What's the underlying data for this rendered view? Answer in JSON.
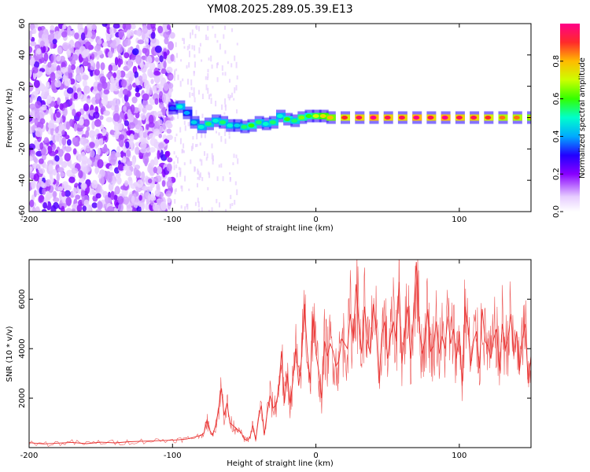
{
  "title": "YM08.2025.289.05.39.E13",
  "colors": {
    "line": "#e8302e",
    "axis": "#000000",
    "ridge": "#ff2a2a"
  },
  "chart_data": [
    {
      "type": "heatmap",
      "name": "spectrogram",
      "xlabel": "Height of straight line (km)",
      "ylabel": "Frequency (Hz)",
      "xlim": [
        -200,
        150
      ],
      "ylim": [
        -60,
        60
      ],
      "x_ticks": [
        -200,
        -100,
        0,
        100
      ],
      "x_tick_labels": [
        "-200",
        "-100",
        "0",
        "100"
      ],
      "y_ticks": [
        -60,
        -40,
        -20,
        0,
        20,
        40,
        60
      ],
      "y_tick_labels": [
        "-60",
        "-40",
        "-20",
        "0",
        "20",
        "40",
        "60"
      ],
      "colorbar": {
        "label": "Normalized spectral amplitude",
        "range": [
          0,
          1
        ],
        "ticks": [
          0,
          0.2,
          0.4,
          0.6,
          0.8
        ],
        "tick_labels": [
          "0.0",
          "0.2",
          "0.4",
          "0.6",
          "0.8"
        ]
      },
      "ridge_points": [
        {
          "x": -100,
          "y": 6,
          "v": 0.35
        },
        {
          "x": -95,
          "y": 7,
          "v": 0.5
        },
        {
          "x": -90,
          "y": 3,
          "v": 0.4
        },
        {
          "x": -85,
          "y": -3,
          "v": 0.45
        },
        {
          "x": -80,
          "y": -6,
          "v": 0.5
        },
        {
          "x": -75,
          "y": -4,
          "v": 0.55
        },
        {
          "x": -70,
          "y": -2,
          "v": 0.5
        },
        {
          "x": -65,
          "y": -3,
          "v": 0.55
        },
        {
          "x": -60,
          "y": -5,
          "v": 0.5
        },
        {
          "x": -55,
          "y": -5,
          "v": 0.45
        },
        {
          "x": -50,
          "y": -6,
          "v": 0.55
        },
        {
          "x": -45,
          "y": -5,
          "v": 0.6
        },
        {
          "x": -40,
          "y": -3,
          "v": 0.55
        },
        {
          "x": -35,
          "y": -4,
          "v": 0.5
        },
        {
          "x": -30,
          "y": -3,
          "v": 0.55
        },
        {
          "x": -25,
          "y": 1,
          "v": 0.5
        },
        {
          "x": -20,
          "y": -1,
          "v": 0.6
        },
        {
          "x": -15,
          "y": -2,
          "v": 0.55
        },
        {
          "x": -10,
          "y": 0,
          "v": 0.65
        },
        {
          "x": -5,
          "y": 1,
          "v": 0.6
        },
        {
          "x": 0,
          "y": 1,
          "v": 0.7
        },
        {
          "x": 5,
          "y": 1,
          "v": 0.75
        },
        {
          "x": 10,
          "y": 0,
          "v": 0.8
        },
        {
          "x": 20,
          "y": 0,
          "v": 0.9
        },
        {
          "x": 30,
          "y": 0,
          "v": 0.95
        },
        {
          "x": 40,
          "y": 0,
          "v": 1.0
        },
        {
          "x": 50,
          "y": 0,
          "v": 0.95
        },
        {
          "x": 60,
          "y": 0,
          "v": 0.95
        },
        {
          "x": 70,
          "y": 0,
          "v": 1.0
        },
        {
          "x": 80,
          "y": 0,
          "v": 0.95
        },
        {
          "x": 90,
          "y": 0,
          "v": 1.0
        },
        {
          "x": 100,
          "y": 0,
          "v": 0.95
        },
        {
          "x": 110,
          "y": 0,
          "v": 0.95
        },
        {
          "x": 120,
          "y": 0,
          "v": 0.9
        },
        {
          "x": 130,
          "y": 0,
          "v": 0.85
        },
        {
          "x": 140,
          "y": 0,
          "v": 0.85
        },
        {
          "x": 150,
          "y": 0,
          "v": 0.8
        }
      ]
    },
    {
      "type": "line",
      "name": "snr",
      "xlabel": "Height of straight line (km)",
      "ylabel": "SNR (10 * v/v)",
      "xlim": [
        -200,
        150
      ],
      "ylim": [
        0,
        7600
      ],
      "x_ticks": [
        -200,
        -100,
        0,
        100
      ],
      "x_tick_labels": [
        "-200",
        "-100",
        "0",
        "100"
      ],
      "y_ticks": [
        2000,
        4000,
        6000
      ],
      "y_tick_labels": [
        "2000",
        "4000",
        "6000"
      ],
      "series": [
        {
          "name": "SNR",
          "x": [
            -200,
            -190,
            -180,
            -170,
            -160,
            -150,
            -140,
            -130,
            -120,
            -110,
            -100,
            -95,
            -90,
            -85,
            -80,
            -78,
            -76,
            -74,
            -72,
            -70,
            -68,
            -66,
            -64,
            -62,
            -60,
            -58,
            -56,
            -54,
            -52,
            -50,
            -48,
            -46,
            -44,
            -42,
            -40,
            -38,
            -36,
            -34,
            -32,
            -30,
            -28,
            -26,
            -24,
            -22,
            -20,
            -18,
            -16,
            -14,
            -12,
            -10,
            -8,
            -6,
            -4,
            -2,
            0,
            2,
            4,
            6,
            8,
            10,
            12,
            14,
            16,
            18,
            20,
            22,
            24,
            26,
            28,
            30,
            32,
            34,
            36,
            38,
            40,
            42,
            44,
            46,
            48,
            50,
            52,
            54,
            56,
            58,
            60,
            62,
            64,
            66,
            68,
            70,
            72,
            74,
            76,
            78,
            80,
            82,
            84,
            86,
            88,
            90,
            92,
            94,
            96,
            98,
            100,
            102,
            104,
            106,
            108,
            110,
            112,
            114,
            116,
            118,
            120,
            122,
            124,
            126,
            128,
            130,
            132,
            134,
            136,
            138,
            140,
            142,
            144,
            146,
            148,
            150
          ],
          "values": [
            200,
            150,
            180,
            210,
            160,
            220,
            190,
            240,
            260,
            280,
            300,
            320,
            350,
            420,
            500,
            600,
            1100,
            700,
            500,
            900,
            1500,
            2400,
            1300,
            1800,
            1000,
            900,
            800,
            700,
            600,
            350,
            300,
            400,
            900,
            300,
            1200,
            1700,
            500,
            1400,
            2100,
            1600,
            1700,
            2300,
            3900,
            1800,
            3000,
            1800,
            2700,
            4000,
            2500,
            3600,
            5800,
            3900,
            2600,
            5400,
            3800,
            3100,
            2000,
            4300,
            3700,
            4200,
            3900,
            3300,
            3500,
            4400,
            4200,
            4000,
            5400,
            4300,
            6600,
            5000,
            3800,
            5700,
            4300,
            3800,
            5800,
            4900,
            2600,
            4600,
            5100,
            3600,
            4500,
            5100,
            4300,
            6700,
            3400,
            4700,
            5700,
            3600,
            5200,
            7500,
            5000,
            3800,
            4300,
            5600,
            3900,
            4100,
            5100,
            3800,
            4500,
            4000,
            5300,
            4200,
            4800,
            3600,
            4700,
            2500,
            5700,
            4900,
            3300,
            4300,
            4700,
            3200,
            5600,
            4300,
            4100,
            3600,
            4400,
            4800,
            3100,
            5000,
            4000,
            4400,
            5400,
            3700,
            4700,
            3100,
            4400,
            5000,
            2600,
            3700
          ]
        }
      ]
    }
  ]
}
